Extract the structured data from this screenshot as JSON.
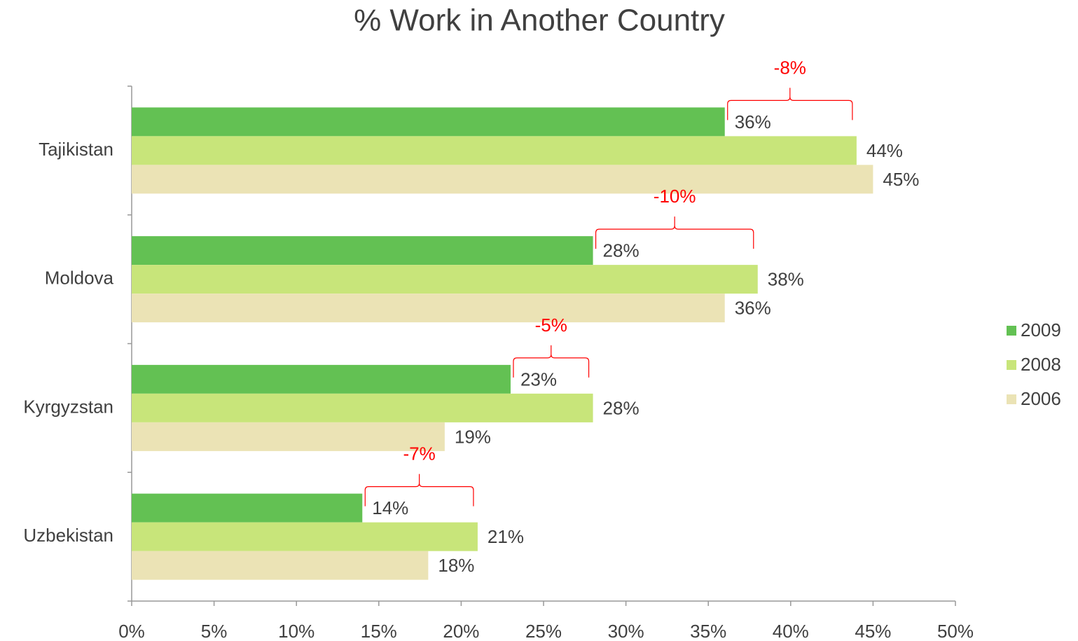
{
  "chart_data": {
    "type": "bar",
    "orientation": "horizontal",
    "title": "% Work in Another Country",
    "categories": [
      "Tajikistan",
      "Moldova",
      "Kyrgyzstan",
      "Uzbekistan"
    ],
    "series": [
      {
        "name": "2009",
        "color": "#63c153",
        "values": [
          36,
          28,
          23,
          14
        ],
        "value_labels": [
          "36%",
          "28%",
          "23%",
          "14%"
        ]
      },
      {
        "name": "2008",
        "color": "#c8e57a",
        "values": [
          44,
          38,
          28,
          21
        ],
        "value_labels": [
          "44%",
          "38%",
          "28%",
          "21%"
        ]
      },
      {
        "name": "2006",
        "color": "#ebe3b5",
        "values": [
          45,
          36,
          19,
          18
        ],
        "value_labels": [
          "45%",
          "36%",
          "19%",
          "18%"
        ]
      }
    ],
    "annotations": [
      "-8%",
      "-10%",
      "-5%",
      "-7%"
    ],
    "annotation_color": "#ff0000",
    "xlim": [
      0,
      50
    ],
    "xticks": [
      {
        "value": 0,
        "label": "0%"
      },
      {
        "value": 5,
        "label": "5%"
      },
      {
        "value": 10,
        "label": "10%"
      },
      {
        "value": 15,
        "label": "15%"
      },
      {
        "value": 20,
        "label": "20%"
      },
      {
        "value": 25,
        "label": "25%"
      },
      {
        "value": 30,
        "label": "30%"
      },
      {
        "value": 35,
        "label": "35%"
      },
      {
        "value": 40,
        "label": "40%"
      },
      {
        "value": 45,
        "label": "45%"
      },
      {
        "value": 50,
        "label": "50%"
      }
    ],
    "grid": false,
    "legend": "right"
  }
}
